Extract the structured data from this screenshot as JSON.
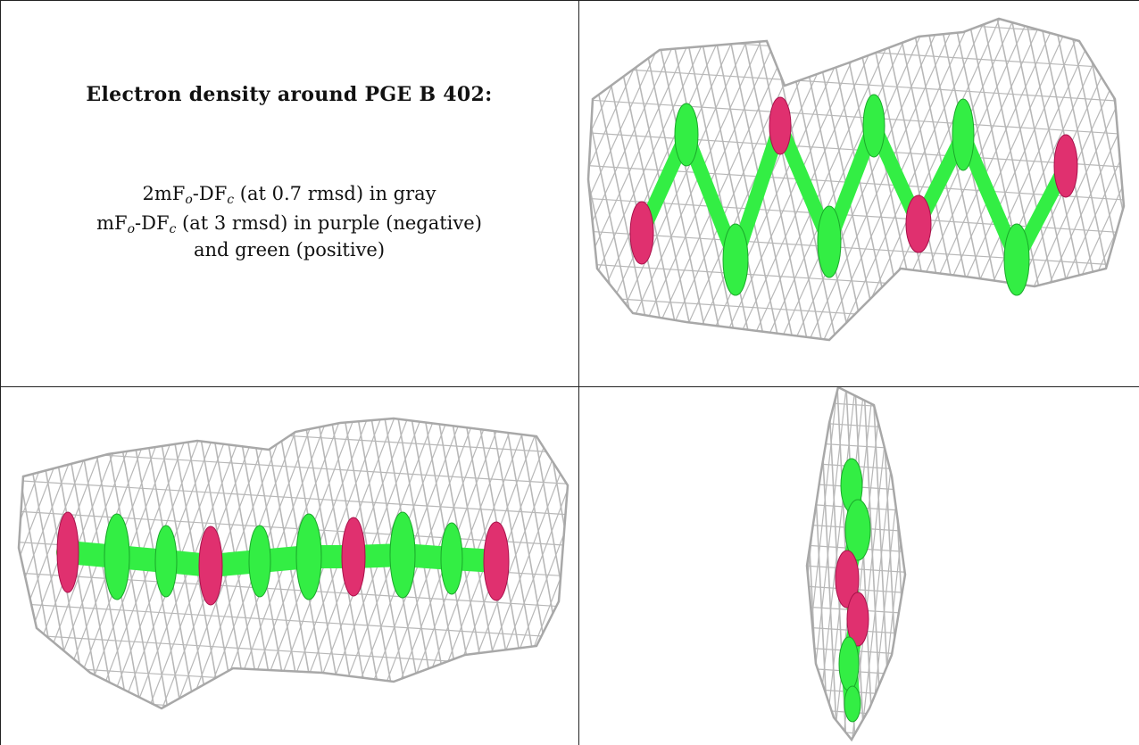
{
  "caption": {
    "title": "Electron density around PGE B 402:",
    "line1": {
      "pre": "2mF",
      "sub1": "o",
      "mid": "-DF",
      "sub2": "c",
      "post": " (at 0.7 rmsd) in gray"
    },
    "line2": {
      "pre": "mF",
      "sub1": "o",
      "mid": "-DF",
      "sub2": "c",
      "post": " (at 3 rmsd) in purple (negative)"
    },
    "line3": "and green (positive)"
  },
  "colors": {
    "mesh": "#b8b8b8",
    "positive": "#33ee44",
    "negative": "#e0306f",
    "border": "#222222"
  },
  "panels": [
    "density-view-top-right",
    "density-view-bottom-left",
    "density-view-bottom-right"
  ]
}
